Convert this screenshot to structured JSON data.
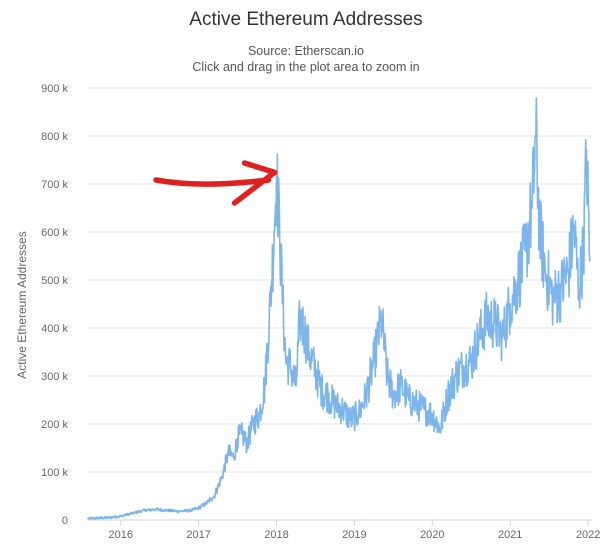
{
  "chart_data": {
    "type": "line",
    "title": "Active Ethereum Addresses",
    "subtitle": "Source: Etherscan.io",
    "instruction": "Click and drag in the plot area to zoom in",
    "ylabel": "Active Ethereum Addresses",
    "xlabel": "",
    "ylim": [
      0,
      900000
    ],
    "xlim": [
      2015.58,
      2022.05
    ],
    "y_ticks": [
      {
        "value": 0,
        "label": "0"
      },
      {
        "value": 100000,
        "label": "100 k"
      },
      {
        "value": 200000,
        "label": "200 k"
      },
      {
        "value": 300000,
        "label": "300 k"
      },
      {
        "value": 400000,
        "label": "400 k"
      },
      {
        "value": 500000,
        "label": "500 k"
      },
      {
        "value": 600000,
        "label": "600 k"
      },
      {
        "value": 700000,
        "label": "700 k"
      },
      {
        "value": 800000,
        "label": "800 k"
      },
      {
        "value": 900000,
        "label": "900 k"
      }
    ],
    "x_ticks": [
      {
        "value": 2016,
        "label": "2016"
      },
      {
        "value": 2017,
        "label": "2017"
      },
      {
        "value": 2018,
        "label": "2018"
      },
      {
        "value": 2019,
        "label": "2019"
      },
      {
        "value": 2020,
        "label": "2020"
      },
      {
        "value": 2021,
        "label": "2021"
      },
      {
        "value": 2022,
        "label": "2022"
      }
    ],
    "grid": true,
    "series": [
      {
        "name": "Active Ethereum Addresses",
        "color": "#7cb5ec",
        "x": [
          2015.58,
          2015.7,
          2015.85,
          2016.0,
          2016.15,
          2016.3,
          2016.45,
          2016.6,
          2016.75,
          2016.9,
          2017.0,
          2017.1,
          2017.2,
          2017.3,
          2017.38,
          2017.45,
          2017.5,
          2017.55,
          2017.62,
          2017.7,
          2017.78,
          2017.85,
          2017.92,
          2017.97,
          2018.0,
          2018.04,
          2018.08,
          2018.12,
          2018.18,
          2018.25,
          2018.3,
          2018.35,
          2018.42,
          2018.5,
          2018.58,
          2018.66,
          2018.75,
          2018.85,
          2018.95,
          2019.05,
          2019.15,
          2019.25,
          2019.35,
          2019.42,
          2019.5,
          2019.6,
          2019.7,
          2019.8,
          2019.9,
          2020.0,
          2020.1,
          2020.2,
          2020.3,
          2020.4,
          2020.5,
          2020.6,
          2020.7,
          2020.8,
          2020.9,
          2021.0,
          2021.1,
          2021.2,
          2021.28,
          2021.33,
          2021.38,
          2021.45,
          2021.55,
          2021.65,
          2021.75,
          2021.82,
          2021.88,
          2021.94,
          2021.98,
          2022.02
        ],
        "values": [
          3000,
          4000,
          5000,
          8000,
          14000,
          20000,
          22000,
          20000,
          18000,
          20000,
          25000,
          35000,
          50000,
          90000,
          140000,
          130000,
          170000,
          180000,
          160000,
          200000,
          220000,
          280000,
          450000,
          600000,
          720000,
          600000,
          450000,
          330000,
          320000,
          280000,
          420000,
          400000,
          350000,
          310000,
          270000,
          260000,
          240000,
          230000,
          210000,
          220000,
          260000,
          330000,
          420000,
          300000,
          260000,
          280000,
          250000,
          240000,
          230000,
          220000,
          190000,
          260000,
          300000,
          320000,
          330000,
          380000,
          420000,
          410000,
          380000,
          450000,
          500000,
          560000,
          650000,
          800000,
          600000,
          520000,
          460000,
          480000,
          520000,
          610000,
          480000,
          560000,
          770000,
          540000
        ]
      }
    ],
    "annotation": {
      "type": "arrow",
      "color": "#e02020",
      "points_to": {
        "x": 2018.0,
        "y": 720000
      }
    }
  },
  "colors": {
    "line": "#7cb5ec",
    "grid": "#e6e6e6",
    "arrow": "#e02020",
    "axis": "#ccd6eb"
  }
}
